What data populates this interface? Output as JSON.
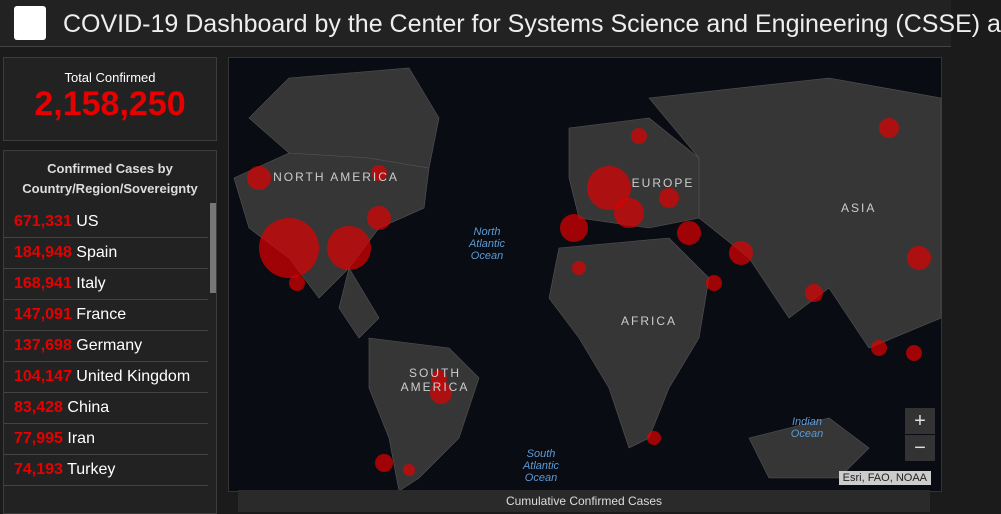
{
  "header": {
    "title": "COVID-19 Dashboard by the Center for Systems Science and Engineering (CSSE) a"
  },
  "total": {
    "label": "Total Confirmed",
    "value": "2,158,250"
  },
  "list": {
    "title": "Confirmed Cases by Country/Region/Sovereignty",
    "rows": [
      [
        "671,331",
        "US"
      ],
      [
        "184,948",
        "Spain"
      ],
      [
        "168,941",
        "Italy"
      ],
      [
        "147,091",
        "France"
      ],
      [
        "137,698",
        "Germany"
      ],
      [
        "104,147",
        "United Kingdom"
      ],
      [
        "83,428",
        "China"
      ],
      [
        "77,995",
        "Iran"
      ],
      [
        "74,193",
        "Turkey"
      ]
    ]
  },
  "map": {
    "labels": [
      "NORTH AMERICA",
      "North Atlantic Ocean",
      "EUROPE",
      "ASIA",
      "AFRICA",
      "SOUTH AMERICA",
      "South Atlantic Ocean",
      "Indian Ocean"
    ],
    "attribution": "Esri, FAO, NOAA",
    "zoom_in": "+",
    "zoom_out": "−"
  },
  "footer": {
    "caption": "Cumulative Confirmed Cases"
  }
}
